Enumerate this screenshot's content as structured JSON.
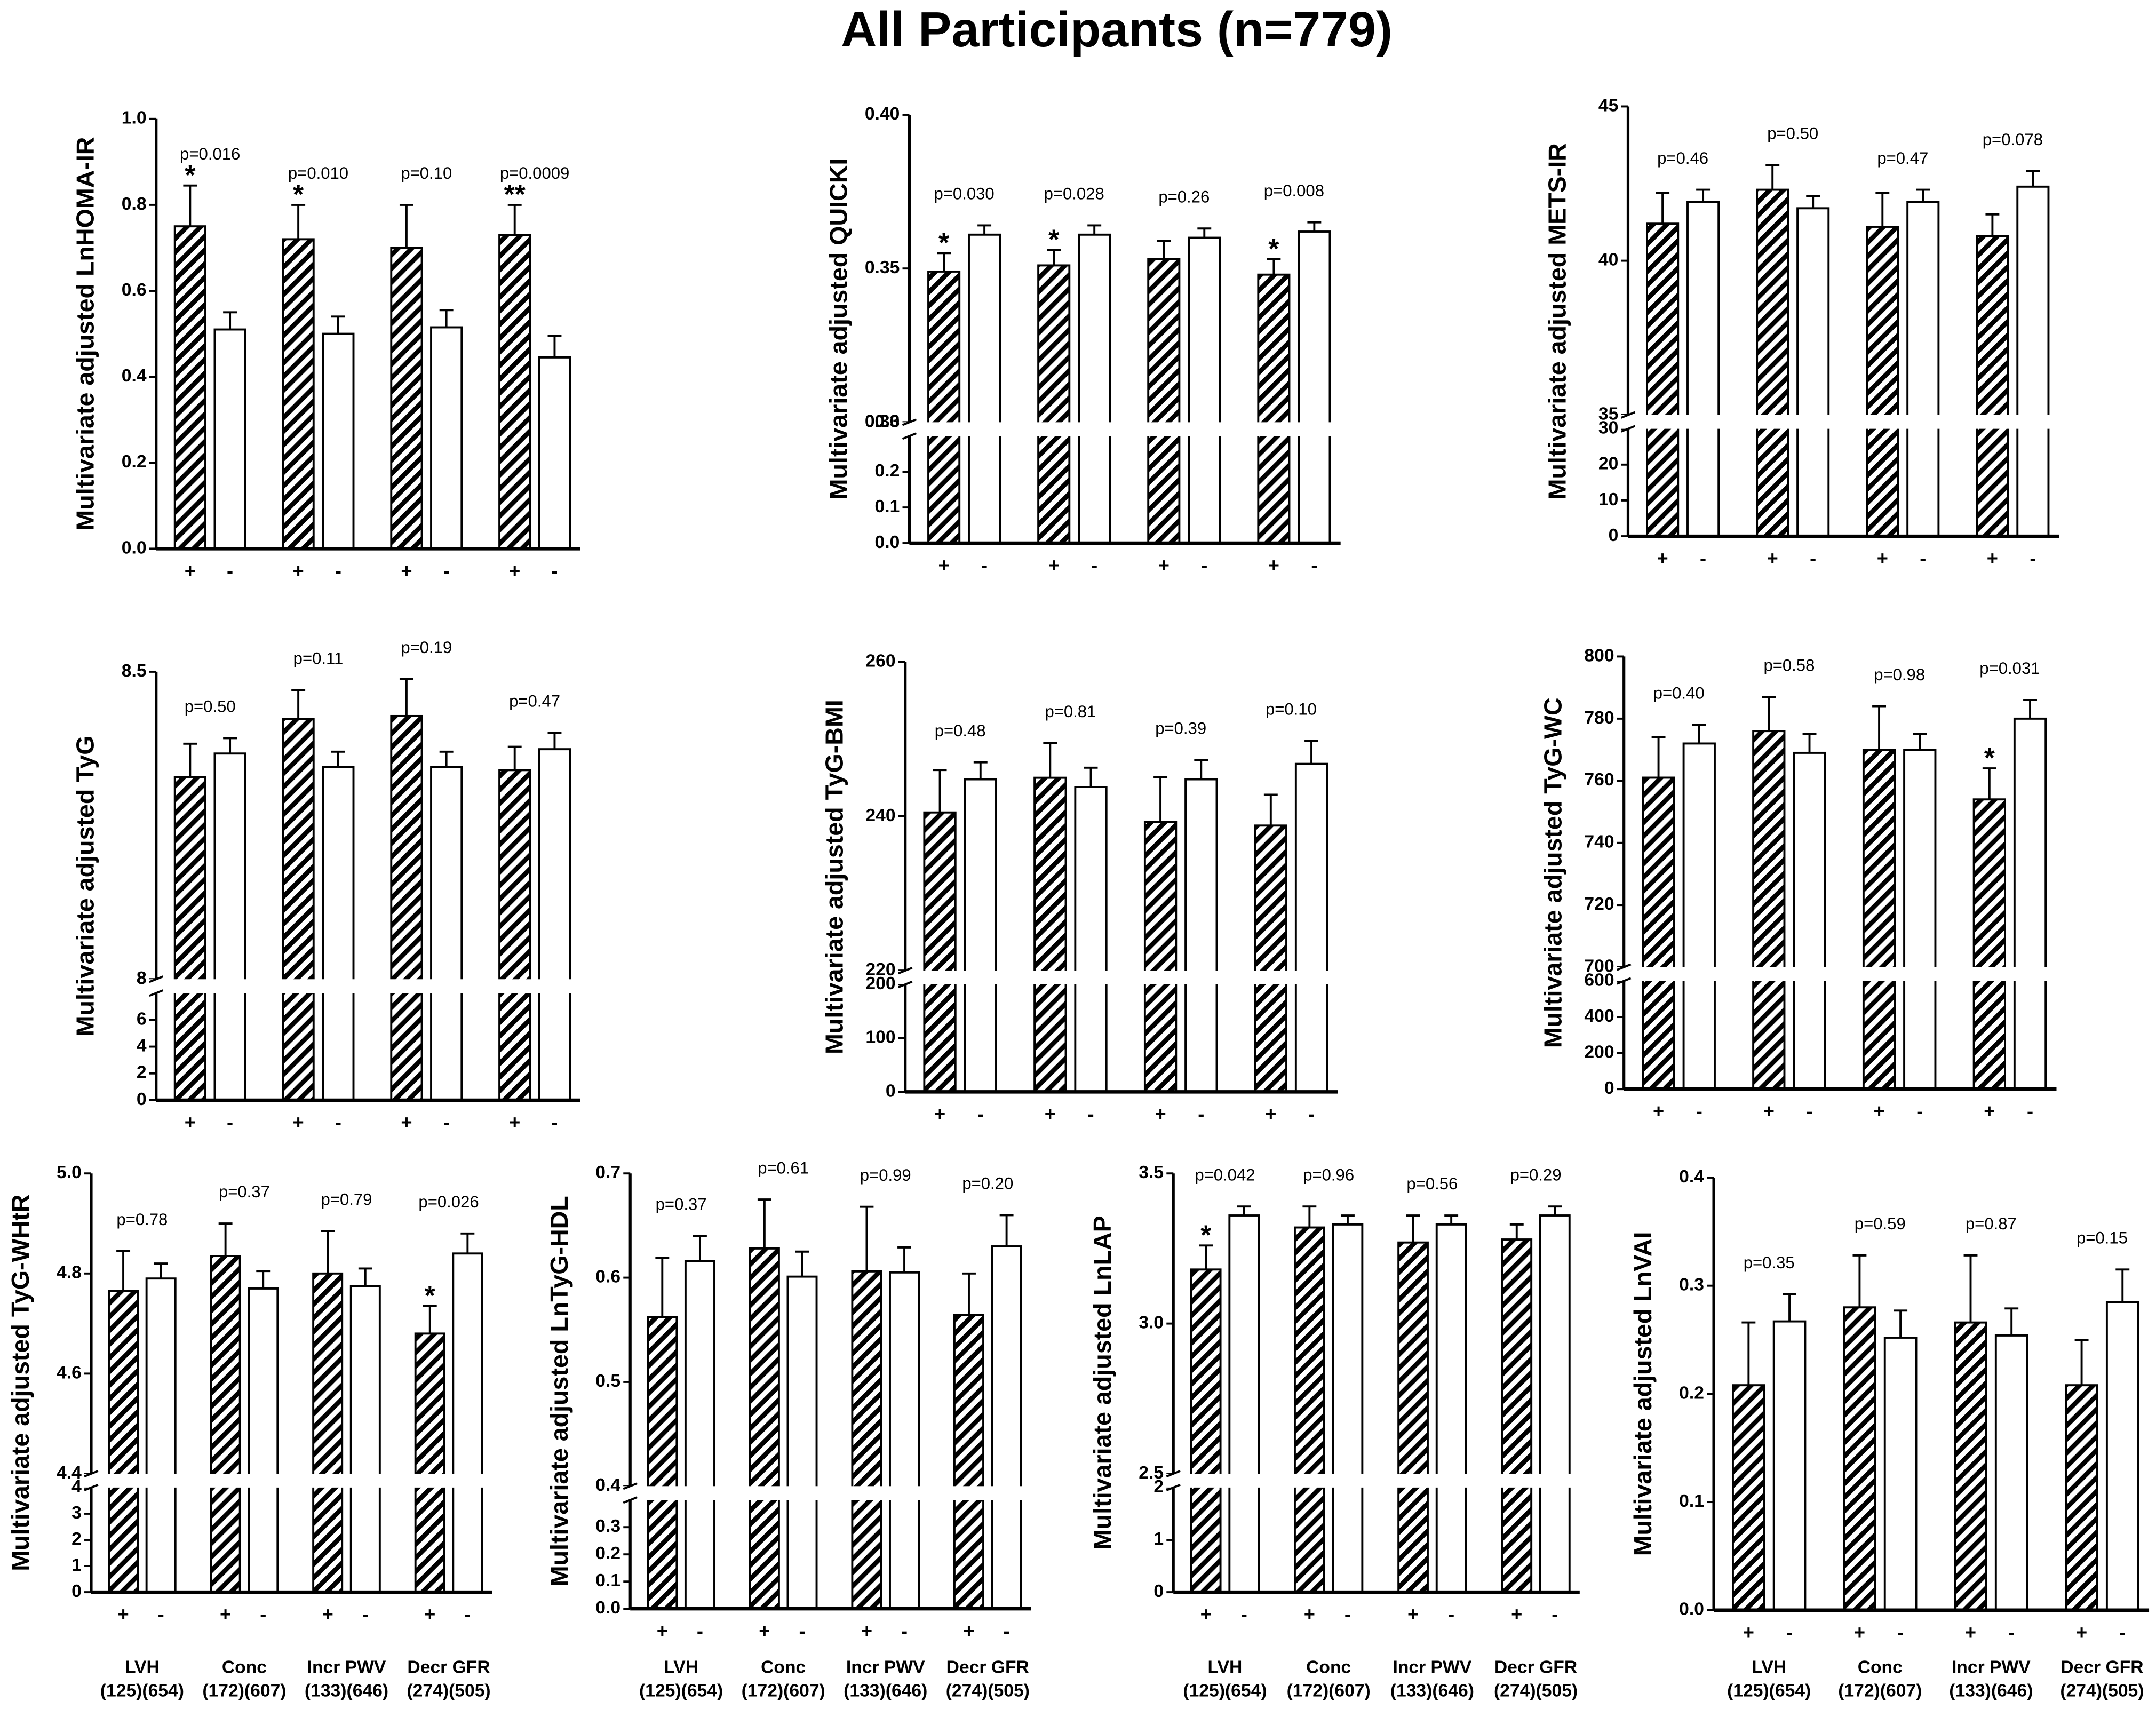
{
  "chart_data": [
    {
      "type": "bar",
      "title": "All Participants (n=779)",
      "ylabel": "Multivariate adjusted LnHOMA-IR",
      "categories": [
        "+",
        "-",
        "+",
        "-",
        "+",
        "-",
        "+",
        "-"
      ],
      "values": [
        0.75,
        0.51,
        0.72,
        0.5,
        0.7,
        0.515,
        0.73,
        0.445
      ],
      "errors": [
        0.095,
        0.04,
        0.08,
        0.04,
        0.1,
        0.04,
        0.07,
        0.05
      ],
      "significance": [
        "*",
        null,
        "*",
        null,
        null,
        null,
        "**",
        null
      ],
      "p_values": [
        "p=0.016",
        "p=0.010",
        "p=0.10",
        "p=0.0009"
      ],
      "ylim": [
        0,
        1.0
      ],
      "yticks": [
        {
          "value": 0,
          "label": "0.0"
        },
        0.2,
        0.4,
        0.6,
        0.8,
        {
          "value": 1.0,
          "label": "1.0"
        }
      ]
    },
    {
      "type": "bar",
      "ylabel": "Multivariate adjusted QUICKI",
      "categories": [
        "+",
        "-",
        "+",
        "-",
        "+",
        "-",
        "+",
        "-"
      ],
      "values": [
        0.349,
        0.361,
        0.351,
        0.361,
        0.353,
        0.36,
        0.348,
        0.362
      ],
      "errors": [
        0.006,
        0.003,
        0.005,
        0.003,
        0.006,
        0.003,
        0.005,
        0.003
      ],
      "significance": [
        "*",
        null,
        "*",
        null,
        null,
        null,
        "*",
        null
      ],
      "p_values": [
        "p=0.030",
        "p=0.028",
        "p=0.26",
        "p=0.008"
      ],
      "ylim": [
        0.3,
        0.4
      ],
      "yticks": [
        {
          "value": 0.3,
          "label": "0.30"
        },
        0.35,
        {
          "value": 0.4,
          "label": "0.40"
        }
      ],
      "ylim_low": [
        0,
        0.3
      ],
      "yticks_low": [
        {
          "value": 0,
          "label": "0.0"
        },
        0.1,
        0.2,
        0.3
      ]
    },
    {
      "type": "bar",
      "ylabel": "Multivariate adjusted METS-IR",
      "categories": [
        "+",
        "-",
        "+",
        "-",
        "+",
        "-",
        "+",
        "-"
      ],
      "values": [
        41.2,
        41.9,
        42.3,
        41.7,
        41.1,
        41.9,
        40.8,
        42.4
      ],
      "errors": [
        1.0,
        0.4,
        0.8,
        0.4,
        1.1,
        0.4,
        0.7,
        0.5
      ],
      "significance": [
        null,
        null,
        null,
        null,
        null,
        null,
        null,
        null
      ],
      "p_values": [
        "p=0.46",
        "p=0.50",
        "p=0.47",
        "p=0.078"
      ],
      "ylim": [
        35,
        45
      ],
      "yticks": [
        35,
        40,
        45
      ],
      "ylim_low": [
        0,
        30
      ],
      "yticks_low": [
        0,
        10,
        20,
        30
      ]
    },
    {
      "type": "bar",
      "ylabel": "Multivariate adjusted TyG",
      "categories": [
        "+",
        "-",
        "+",
        "-",
        "+",
        "-",
        "+",
        "-"
      ],
      "values": [
        8.329,
        8.367,
        8.423,
        8.345,
        8.428,
        8.345,
        8.34,
        8.374
      ],
      "errors": [
        0.054,
        0.025,
        0.047,
        0.025,
        0.06,
        0.025,
        0.038,
        0.027
      ],
      "significance": [
        null,
        null,
        null,
        null,
        null,
        null,
        null,
        null
      ],
      "p_values": [
        "p=0.50",
        "p=0.11",
        "p=0.19",
        "p=0.47"
      ],
      "ylim": [
        8,
        8.5
      ],
      "yticks": [
        8,
        8.5
      ],
      "ylim_low": [
        0,
        8
      ],
      "yticks_low": [
        0,
        2,
        4,
        6,
        8
      ]
    },
    {
      "type": "bar",
      "ylabel": "Multivariate adjusted TyG-BMI",
      "categories": [
        "+",
        "-",
        "+",
        "-",
        "+",
        "-",
        "+",
        "-"
      ],
      "values": [
        240.5,
        244.8,
        245,
        243.8,
        239.3,
        244.8,
        238.8,
        246.8
      ],
      "errors": [
        5.5,
        2.2,
        4.5,
        2.5,
        5.8,
        2.5,
        4,
        3
      ],
      "significance": [
        null,
        null,
        null,
        null,
        null,
        null,
        null,
        null
      ],
      "p_values": [
        "p=0.48",
        "p=0.81",
        "p=0.39",
        "p=0.10"
      ],
      "ylim": [
        220,
        260
      ],
      "yticks": [
        220,
        240,
        260
      ],
      "ylim_low": [
        0,
        200
      ],
      "yticks_low": [
        0,
        100,
        200
      ]
    },
    {
      "type": "bar",
      "ylabel": "Multivariate adjusted TyG-WC",
      "categories": [
        "+",
        "-",
        "+",
        "-",
        "+",
        "-",
        "+",
        "-"
      ],
      "values": [
        761,
        772,
        776,
        769,
        770,
        770,
        754,
        780
      ],
      "errors": [
        13,
        6,
        11,
        6,
        14,
        5,
        10,
        6
      ],
      "significance": [
        null,
        null,
        null,
        null,
        null,
        null,
        "*",
        null
      ],
      "p_values": [
        "p=0.40",
        "p=0.58",
        "p=0.98",
        "p=0.031"
      ],
      "ylim": [
        700,
        800
      ],
      "yticks": [
        700,
        720,
        740,
        760,
        780,
        800
      ],
      "ylim_low": [
        0,
        600
      ],
      "yticks_low": [
        0,
        200,
        400,
        600
      ]
    },
    {
      "type": "bar",
      "ylabel": "Multivariate adjusted TyG-WHtR",
      "categories": [
        "+",
        "-",
        "+",
        "-",
        "+",
        "-",
        "+",
        "-"
      ],
      "values": [
        4.765,
        4.79,
        4.835,
        4.77,
        4.8,
        4.775,
        4.68,
        4.84
      ],
      "errors": [
        0.08,
        0.03,
        0.065,
        0.035,
        0.085,
        0.035,
        0.055,
        0.04
      ],
      "significance": [
        null,
        null,
        null,
        null,
        null,
        null,
        "*",
        null
      ],
      "p_values": [
        "p=0.78",
        "p=0.37",
        "p=0.79",
        "p=0.026"
      ],
      "ylim": [
        4.4,
        5.0
      ],
      "yticks": [
        4.4,
        4.6,
        4.8,
        {
          "value": 5.0,
          "label": "5.0"
        }
      ],
      "ylim_low": [
        0,
        4
      ],
      "yticks_low": [
        0,
        1,
        2,
        3,
        4
      ],
      "group_labels": [
        "LVH",
        "Conc",
        "Incr PWV",
        "Decr GFR"
      ],
      "group_counts": [
        "(125)(654)",
        "(172)(607)",
        "(133)(646)",
        "(274)(505)"
      ]
    },
    {
      "type": "bar",
      "ylabel": "Multivariate adjusted LnTyG-HDL",
      "categories": [
        "+",
        "-",
        "+",
        "-",
        "+",
        "-",
        "+",
        "-"
      ],
      "values": [
        0.562,
        0.616,
        0.628,
        0.601,
        0.606,
        0.605,
        0.564,
        0.63
      ],
      "errors": [
        0.057,
        0.024,
        0.047,
        0.024,
        0.062,
        0.024,
        0.04,
        0.03
      ],
      "significance": [
        null,
        null,
        null,
        null,
        null,
        null,
        null,
        null
      ],
      "p_values": [
        "p=0.37",
        "p=0.61",
        "p=0.99",
        "p=0.20"
      ],
      "ylim": [
        0.4,
        0.7
      ],
      "yticks": [
        0.4,
        0.5,
        0.6,
        0.7
      ],
      "ylim_low": [
        0,
        0.4
      ],
      "yticks_low": [
        {
          "value": 0,
          "label": "0.0"
        },
        0.1,
        0.2,
        0.3,
        0.4
      ],
      "group_labels": [
        "LVH",
        "Conc",
        "Incr PWV",
        "Decr GFR"
      ],
      "group_counts": [
        "(125)(654)",
        "(172)(607)",
        "(133)(646)",
        "(274)(505)"
      ]
    },
    {
      "type": "bar",
      "ylabel": "Multivariate adjusted LnLAP",
      "categories": [
        "+",
        "-",
        "+",
        "-",
        "+",
        "-",
        "+",
        "-"
      ],
      "values": [
        3.18,
        3.36,
        3.32,
        3.33,
        3.27,
        3.33,
        3.28,
        3.36
      ],
      "errors": [
        0.08,
        0.03,
        0.07,
        0.03,
        0.09,
        0.03,
        0.05,
        0.03
      ],
      "significance": [
        "*",
        null,
        null,
        null,
        null,
        null,
        null,
        null
      ],
      "p_values": [
        "p=0.042",
        "p=0.96",
        "p=0.56",
        "p=0.29"
      ],
      "ylim": [
        2.5,
        3.5
      ],
      "yticks": [
        2.5,
        {
          "value": 3.0,
          "label": "3.0"
        },
        3.5
      ],
      "ylim_low": [
        0,
        2
      ],
      "yticks_low": [
        0,
        1,
        2
      ],
      "group_labels": [
        "LVH",
        "Conc",
        "Incr PWV",
        "Decr GFR"
      ],
      "group_counts": [
        "(125)(654)",
        "(172)(607)",
        "(133)(646)",
        "(274)(505)"
      ]
    },
    {
      "type": "bar",
      "ylabel": "Multivariate adjusted LnVAI",
      "categories": [
        "+",
        "-",
        "+",
        "-",
        "+",
        "-",
        "+",
        "-"
      ],
      "values": [
        0.208,
        0.267,
        0.28,
        0.252,
        0.266,
        0.254,
        0.208,
        0.285
      ],
      "errors": [
        0.058,
        0.025,
        0.048,
        0.025,
        0.062,
        0.025,
        0.042,
        0.03
      ],
      "significance": [
        null,
        null,
        null,
        null,
        null,
        null,
        null,
        null
      ],
      "p_values": [
        "p=0.35",
        "p=0.59",
        "p=0.87",
        "p=0.15"
      ],
      "ylim": [
        0,
        0.4
      ],
      "yticks": [
        {
          "value": 0,
          "label": "0.0"
        },
        0.1,
        0.2,
        0.3,
        0.4
      ],
      "group_labels": [
        "LVH",
        "Conc",
        "Incr PWV",
        "Decr GFR"
      ],
      "group_counts": [
        "(125)(654)",
        "(172)(607)",
        "(133)(646)",
        "(274)(505)"
      ]
    }
  ]
}
